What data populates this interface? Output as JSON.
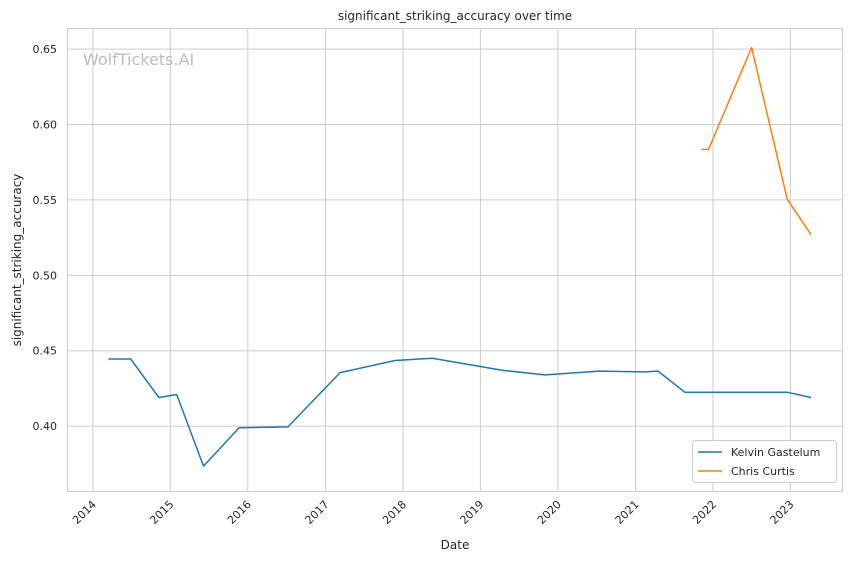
{
  "chart_data": {
    "type": "line",
    "title": "significant_striking_accuracy over time",
    "xlabel": "Date",
    "ylabel": "significant_striking_accuracy",
    "watermark": "WolfTickets.AI",
    "x_ticks": [
      "2014",
      "2015",
      "2016",
      "2017",
      "2018",
      "2019",
      "2020",
      "2021",
      "2022",
      "2023"
    ],
    "y_ticks": [
      "0.40",
      "0.45",
      "0.50",
      "0.55",
      "0.60",
      "0.65"
    ],
    "xlim": [
      "2013-09-01",
      "2023-09-01"
    ],
    "ylim": [
      0.357,
      0.664
    ],
    "grid": true,
    "legend_position": "lower-right",
    "series": [
      {
        "name": "Kelvin Gastelum",
        "color": "#1f77b4",
        "points": [
          [
            "2014-03-15",
            0.4445
          ],
          [
            "2014-06-28",
            0.4445
          ],
          [
            "2014-11-08",
            0.419
          ],
          [
            "2015-01-31",
            0.421
          ],
          [
            "2015-06-06",
            0.3735
          ],
          [
            "2015-11-21",
            0.399
          ],
          [
            "2016-07-08",
            0.3995
          ],
          [
            "2017-03-11",
            0.4355
          ],
          [
            "2017-11-25",
            0.4435
          ],
          [
            "2018-05-19",
            0.445
          ],
          [
            "2019-04-13",
            0.437
          ],
          [
            "2019-11-02",
            0.434
          ],
          [
            "2020-07-11",
            0.4365
          ],
          [
            "2021-02-13",
            0.436
          ],
          [
            "2021-04-17",
            0.4365
          ],
          [
            "2021-08-21",
            0.4225
          ],
          [
            "2022-12-17",
            0.4225
          ],
          [
            "2023-04-08",
            0.419
          ]
        ]
      },
      {
        "name": "Chris Curtis",
        "color": "#ff7f0e",
        "points": [
          [
            "2021-11-06",
            0.5835
          ],
          [
            "2021-12-11",
            0.5835
          ],
          [
            "2022-07-02",
            0.651
          ],
          [
            "2022-12-17",
            0.5505
          ],
          [
            "2023-04-08",
            0.527
          ]
        ]
      }
    ]
  }
}
